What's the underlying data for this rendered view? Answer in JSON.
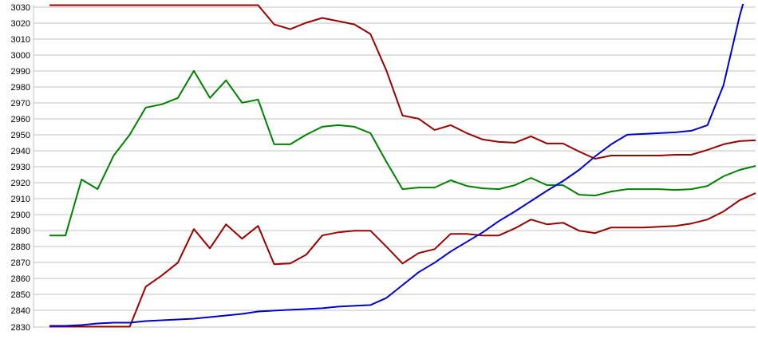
{
  "chart_data": {
    "type": "line",
    "title": "",
    "legend": {
      "visible": false
    },
    "grid": {
      "horizontal": true,
      "vertical": false,
      "color": "#c0c0c0"
    },
    "background_color": "#ffffff",
    "text_color": "#000000",
    "y_axis": {
      "min": 2830,
      "max": 3030,
      "tick_step": 10,
      "tick_labels": [
        "3030",
        "3020",
        "3010",
        "3000",
        "2990",
        "2980",
        "2970",
        "2960",
        "2950",
        "2940",
        "2930",
        "2920",
        "2910",
        "2900",
        "2890",
        "2880",
        "2870",
        "2860",
        "2850",
        "2840",
        "2830"
      ]
    },
    "x_axis": {
      "labels_visible": false,
      "num_points": 45
    },
    "series": [
      {
        "name": "upper-red-line",
        "color": "#990000",
        "clipped_at_top": true,
        "values": [
          3031,
          3031,
          3031,
          3031,
          3031,
          3031,
          3031,
          3031,
          3031,
          3031,
          3031,
          3031,
          3031,
          3031,
          3019,
          3016,
          3020,
          3023,
          3021,
          3019,
          3013,
          2990,
          2962,
          2960,
          2953,
          2956,
          2951,
          2947,
          2945.5,
          2945,
          2949,
          2944.5,
          2944.5,
          2939.5,
          2935,
          2937,
          2937,
          2937,
          2937,
          2937.5,
          2937.5,
          2940.5,
          2944,
          2946,
          2946.5
        ]
      },
      {
        "name": "green-line",
        "color": "#008000",
        "clipped_at_top": false,
        "values": [
          2887,
          2887,
          2922,
          2916,
          2937,
          2950,
          2967,
          2969,
          2973,
          2990,
          2973,
          2984,
          2970,
          2972,
          2944,
          2944,
          2950,
          2955,
          2956,
          2955,
          2951,
          2933,
          2916,
          2917,
          2917,
          2921.5,
          2918,
          2916.5,
          2916,
          2918.5,
          2923,
          2918.5,
          2918.5,
          2912.5,
          2912,
          2914.5,
          2916,
          2916,
          2916,
          2915.5,
          2916,
          2918,
          2924,
          2928,
          2930.5
        ]
      },
      {
        "name": "lower-red-line",
        "color": "#990000",
        "clipped_at_top": false,
        "values": [
          2830,
          2830,
          2830,
          2830,
          2830,
          2830,
          2855,
          2862,
          2870,
          2891,
          2879,
          2894,
          2885,
          2893,
          2869,
          2869.5,
          2875,
          2887,
          2889,
          2890,
          2890,
          2880,
          2869.5,
          2876,
          2878.5,
          2888,
          2888,
          2887,
          2887,
          2891.5,
          2897,
          2894,
          2895,
          2890,
          2888.5,
          2892,
          2892,
          2892,
          2892.5,
          2893,
          2894.5,
          2897,
          2902,
          2909,
          2913.5
        ]
      },
      {
        "name": "blue-line",
        "color": "#0000cc",
        "clipped_at_top": true,
        "values": [
          2830.5,
          2830.5,
          2831,
          2832,
          2832.5,
          2832.5,
          2833.5,
          2834,
          2834.5,
          2835,
          2836,
          2837,
          2838,
          2839.5,
          2840,
          2840.5,
          2841,
          2841.5,
          2842.5,
          2843,
          2843.5,
          2848,
          2856,
          2864,
          2870,
          2877,
          2883,
          2889,
          2896,
          2902,
          2908.5,
          2915,
          2921,
          2928,
          2936.5,
          2944,
          2950,
          2950.5,
          2951,
          2951.5,
          2952.5,
          2956,
          2981,
          3024,
          3060
        ]
      }
    ]
  }
}
